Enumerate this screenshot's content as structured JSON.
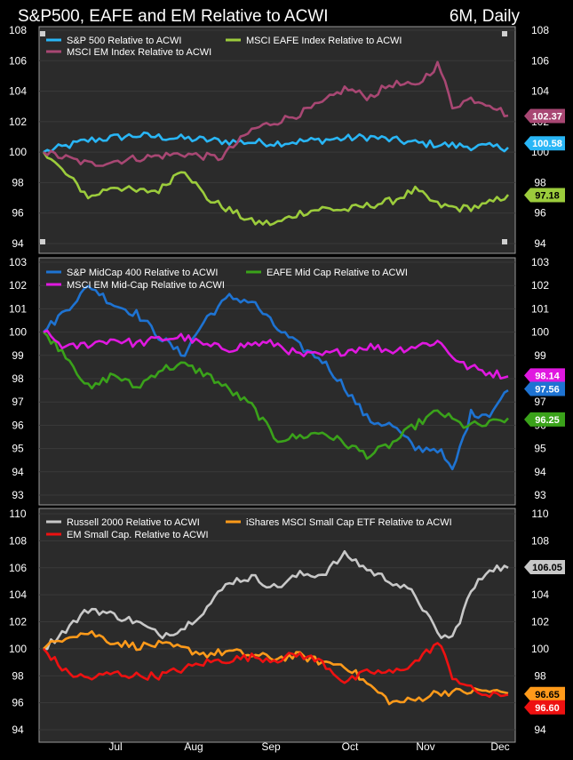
{
  "header": {
    "title": "S&P500, EAFE and EM Relative to ACWI",
    "period": "6M, Daily"
  },
  "x_axis": {
    "ticks": [
      "Jul",
      "Aug",
      "Sep",
      "Oct",
      "Nov",
      "Dec"
    ]
  },
  "chart_data": [
    {
      "type": "line",
      "panel": "top",
      "ylim": [
        94,
        108
      ],
      "yticks": [
        94,
        96,
        98,
        100,
        102,
        104,
        106,
        108
      ],
      "series": [
        {
          "name": "S&P 500 Relative to ACWI",
          "color": "#29b6f6",
          "last": "100.58",
          "anchors": [
            [
              0,
              100
            ],
            [
              10,
              100.8
            ],
            [
              20,
              101.1
            ],
            [
              30,
              100.9
            ],
            [
              40,
              100.7
            ],
            [
              50,
              100.6
            ],
            [
              60,
              100.8
            ],
            [
              70,
              101
            ],
            [
              80,
              100.6
            ],
            [
              90,
              100.4
            ],
            [
              100,
              100.3
            ]
          ]
        },
        {
          "name": "MSCI EAFE Index Relative to ACWI",
          "color": "#9ccc3c",
          "last": "97.18",
          "anchors": [
            [
              0,
              100
            ],
            [
              5,
              98.5
            ],
            [
              10,
              97
            ],
            [
              15,
              97.8
            ],
            [
              20,
              97.4
            ],
            [
              25,
              97.5
            ],
            [
              30,
              99
            ],
            [
              35,
              97
            ],
            [
              40,
              96.2
            ],
            [
              45,
              95.4
            ],
            [
              50,
              95.3
            ],
            [
              55,
              96
            ],
            [
              60,
              96.3
            ],
            [
              65,
              96.2
            ],
            [
              70,
              96.5
            ],
            [
              75,
              96.8
            ],
            [
              80,
              97.5
            ],
            [
              85,
              96.5
            ],
            [
              90,
              96.3
            ],
            [
              95,
              96.5
            ],
            [
              100,
              97.2
            ]
          ]
        },
        {
          "name": "MSCI EM Index Relative to ACWI",
          "color": "#a84773",
          "last": "102.37",
          "anchors": [
            [
              0,
              100
            ],
            [
              10,
              99.2
            ],
            [
              20,
              99.6
            ],
            [
              30,
              99.9
            ],
            [
              38,
              99.6
            ],
            [
              45,
              101.5
            ],
            [
              55,
              102.5
            ],
            [
              60,
              103.2
            ],
            [
              65,
              104.2
            ],
            [
              70,
              103.6
            ],
            [
              75,
              104.5
            ],
            [
              80,
              104.3
            ],
            [
              85,
              105.8
            ],
            [
              88,
              103
            ],
            [
              92,
              103.5
            ],
            [
              96,
              103.2
            ],
            [
              100,
              102.4
            ]
          ]
        }
      ]
    },
    {
      "type": "line",
      "panel": "middle",
      "ylim": [
        93,
        103
      ],
      "yticks": [
        93,
        94,
        95,
        96,
        97,
        98,
        99,
        100,
        101,
        102,
        103
      ],
      "series": [
        {
          "name": "S&P MidCap 400 Relative to ACWI",
          "color": "#1e73d2",
          "last": "97.56",
          "anchors": [
            [
              0,
              100
            ],
            [
              5,
              101
            ],
            [
              10,
              102
            ],
            [
              15,
              101.2
            ],
            [
              20,
              100.8
            ],
            [
              25,
              99.8
            ],
            [
              30,
              99
            ],
            [
              35,
              100.6
            ],
            [
              40,
              101.5
            ],
            [
              45,
              101.3
            ],
            [
              50,
              100.2
            ],
            [
              55,
              99.4
            ],
            [
              60,
              98.8
            ],
            [
              65,
              97.6
            ],
            [
              70,
              96.2
            ],
            [
              75,
              96
            ],
            [
              80,
              95
            ],
            [
              85,
              95
            ],
            [
              88,
              94
            ],
            [
              92,
              96.5
            ],
            [
              96,
              96.5
            ],
            [
              100,
              97.5
            ]
          ]
        },
        {
          "name": "EAFE Mid Cap Relative to ACWI",
          "color": "#3aa21a",
          "last": "96.25",
          "anchors": [
            [
              0,
              100
            ],
            [
              5,
              99
            ],
            [
              10,
              97.5
            ],
            [
              15,
              98.2
            ],
            [
              20,
              97.6
            ],
            [
              25,
              98.4
            ],
            [
              30,
              98.6
            ],
            [
              35,
              98.2
            ],
            [
              40,
              97.5
            ],
            [
              45,
              96.8
            ],
            [
              50,
              95.4
            ],
            [
              55,
              95.5
            ],
            [
              60,
              95.7
            ],
            [
              65,
              95.2
            ],
            [
              70,
              94.7
            ],
            [
              75,
              95.2
            ],
            [
              80,
              96
            ],
            [
              85,
              96.6
            ],
            [
              90,
              96
            ],
            [
              95,
              96
            ],
            [
              100,
              96.3
            ]
          ]
        },
        {
          "name": "MSCI EM Mid-Cap Relative to ACWI",
          "color": "#e018e0",
          "last": "98.14",
          "anchors": [
            [
              0,
              100
            ],
            [
              5,
              99.3
            ],
            [
              10,
              99.5
            ],
            [
              15,
              99.7
            ],
            [
              20,
              99.5
            ],
            [
              25,
              99.7
            ],
            [
              30,
              99.8
            ],
            [
              35,
              99.4
            ],
            [
              40,
              99.3
            ],
            [
              45,
              99.5
            ],
            [
              50,
              99.5
            ],
            [
              55,
              99
            ],
            [
              60,
              99
            ],
            [
              65,
              99.2
            ],
            [
              70,
              99.4
            ],
            [
              75,
              99.2
            ],
            [
              80,
              99.4
            ],
            [
              85,
              99.6
            ],
            [
              90,
              98.6
            ],
            [
              95,
              98.3
            ],
            [
              100,
              98.1
            ]
          ]
        }
      ]
    },
    {
      "type": "line",
      "panel": "bottom",
      "ylim": [
        94,
        110
      ],
      "yticks": [
        94,
        96,
        98,
        100,
        102,
        104,
        106,
        108,
        110
      ],
      "series": [
        {
          "name": "Russell 2000 Relative to ACWI",
          "color": "#c8c8c8",
          "last": "106.05",
          "anchors": [
            [
              0,
              100
            ],
            [
              5,
              101.5
            ],
            [
              10,
              103
            ],
            [
              15,
              102.5
            ],
            [
              20,
              102
            ],
            [
              25,
              101
            ],
            [
              30,
              101.5
            ],
            [
              35,
              103
            ],
            [
              40,
              105
            ],
            [
              45,
              105.3
            ],
            [
              50,
              104.5
            ],
            [
              55,
              105.5
            ],
            [
              60,
              105.5
            ],
            [
              65,
              107
            ],
            [
              70,
              105.8
            ],
            [
              75,
              105
            ],
            [
              80,
              104
            ],
            [
              85,
              101
            ],
            [
              88,
              100.8
            ],
            [
              92,
              104.2
            ],
            [
              96,
              106
            ],
            [
              100,
              106
            ]
          ]
        },
        {
          "name": "iShares MSCI Small Cap ETF Relative to ACWI",
          "color": "#ff9a1a",
          "last": "96.65",
          "anchors": [
            [
              0,
              100
            ],
            [
              5,
              101
            ],
            [
              10,
              101.2
            ],
            [
              15,
              100.5
            ],
            [
              20,
              100.2
            ],
            [
              25,
              100.3
            ],
            [
              30,
              100
            ],
            [
              35,
              99.6
            ],
            [
              40,
              99.8
            ],
            [
              45,
              99.5
            ],
            [
              50,
              99.3
            ],
            [
              55,
              99.5
            ],
            [
              60,
              99
            ],
            [
              65,
              98.8
            ],
            [
              70,
              97.3
            ],
            [
              75,
              96
            ],
            [
              80,
              96.2
            ],
            [
              85,
              96.8
            ],
            [
              90,
              96.8
            ],
            [
              95,
              96.9
            ],
            [
              100,
              96.7
            ]
          ]
        },
        {
          "name": "EM Small Cap. Relative to ACWI",
          "color": "#ee1111",
          "last": "96.60",
          "anchors": [
            [
              0,
              100
            ],
            [
              5,
              98.2
            ],
            [
              10,
              97.8
            ],
            [
              15,
              98.2
            ],
            [
              20,
              98
            ],
            [
              25,
              98
            ],
            [
              30,
              98.5
            ],
            [
              35,
              99
            ],
            [
              40,
              99.2
            ],
            [
              45,
              99.4
            ],
            [
              50,
              99.2
            ],
            [
              55,
              99.6
            ],
            [
              60,
              99
            ],
            [
              65,
              97.5
            ],
            [
              70,
              98.3
            ],
            [
              75,
              98.2
            ],
            [
              80,
              99
            ],
            [
              85,
              100.5
            ],
            [
              88,
              98
            ],
            [
              92,
              97
            ],
            [
              96,
              96.5
            ],
            [
              100,
              96.6
            ]
          ]
        }
      ]
    }
  ]
}
